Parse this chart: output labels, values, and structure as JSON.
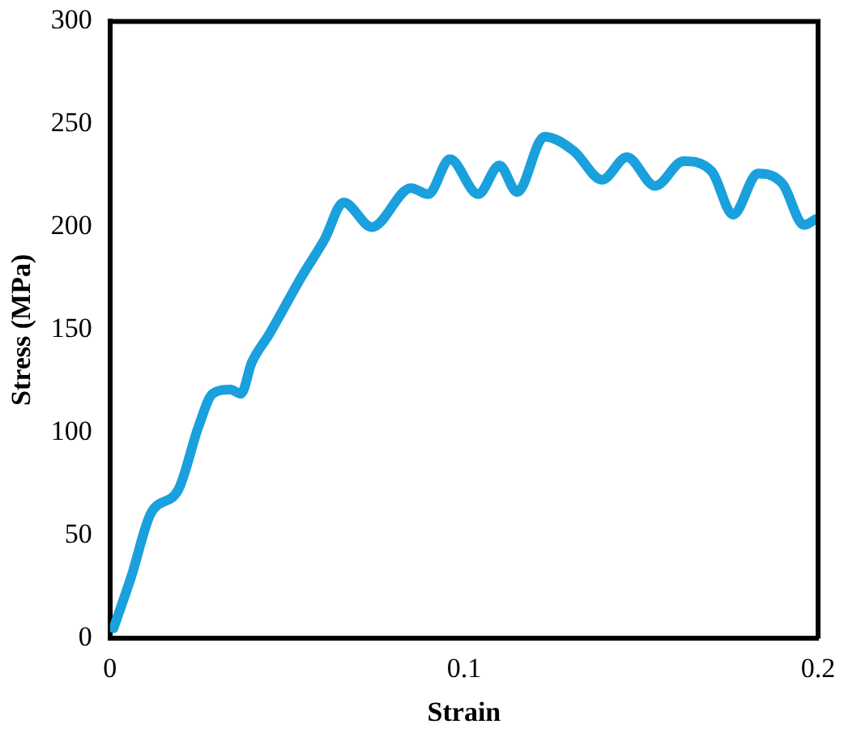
{
  "chart_data": {
    "type": "line",
    "xlabel": "Strain",
    "ylabel": "Stress (MPa)",
    "x": [
      0.001,
      0.006,
      0.0116,
      0.0192,
      0.025,
      0.029,
      0.034,
      0.037,
      0.04,
      0.045,
      0.0545,
      0.0606,
      0.066,
      0.074,
      0.085,
      0.0899,
      0.096,
      0.104,
      0.11,
      0.115,
      0.1227,
      0.131,
      0.139,
      0.146,
      0.154,
      0.162,
      0.17,
      0.176,
      0.183,
      0.19,
      0.196,
      0.1995
    ],
    "series": [
      {
        "color": "#1aa0dc",
        "values": [
          5,
          30,
          61,
          72,
          103,
          119,
          121,
          119,
          134,
          148,
          177,
          194,
          212,
          200,
          219,
          216,
          233,
          216,
          230,
          217,
          244,
          237,
          223,
          234,
          220,
          232,
          227,
          206,
          226,
          221,
          201,
          204
        ]
      }
    ],
    "xlim": [
      0,
      0.2
    ],
    "xticks": [
      0,
      0.1,
      0.2
    ],
    "ylim": [
      0,
      300
    ],
    "yticks": [
      0,
      50,
      100,
      150,
      200,
      250,
      300
    ],
    "grid": false,
    "legend": false,
    "marker": "none",
    "line_style": "solid"
  }
}
